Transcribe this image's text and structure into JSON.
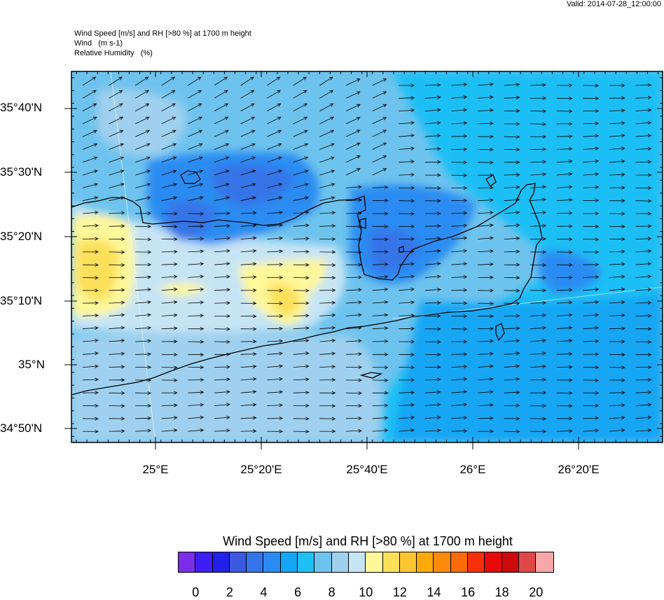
{
  "valid": "Valid: 2014-07-28_12:00:00",
  "titles": {
    "line1": "Wind Speed [m/s] and RH [>80 %] at 1700 m height",
    "line2": "Wind   (m s-1)",
    "line3": "Relative Humidity   (%)"
  },
  "axes": {
    "lat_labels": [
      "35°40'N",
      "35°30'N",
      "35°20'N",
      "35°10'N",
      "35°N",
      "34°50'N"
    ],
    "lon_labels": [
      "25°E",
      "25°20'E",
      "25°40'E",
      "26°E",
      "26°20'E"
    ]
  },
  "colorbar": {
    "title": "Wind Speed [m/s] and RH [>80 %] at 1700 m height",
    "tick_labels": [
      "0",
      "2",
      "4",
      "6",
      "8",
      "10",
      "12",
      "14",
      "16",
      "18",
      "20"
    ],
    "colors": [
      "#7a2ee8",
      "#3d1ef5",
      "#2020e6",
      "#3b58e0",
      "#3574e8",
      "#2a8cf2",
      "#12a6f4",
      "#1ebff5",
      "#6ec3ee",
      "#9fd0ef",
      "#c6e4f4",
      "#fff79a",
      "#fde05a",
      "#fcc630",
      "#fca90a",
      "#fc8a0a",
      "#fc6a0a",
      "#f8300a",
      "#e60a0a",
      "#cc0a0a",
      "#e04848",
      "#f6a8a8"
    ]
  }
}
